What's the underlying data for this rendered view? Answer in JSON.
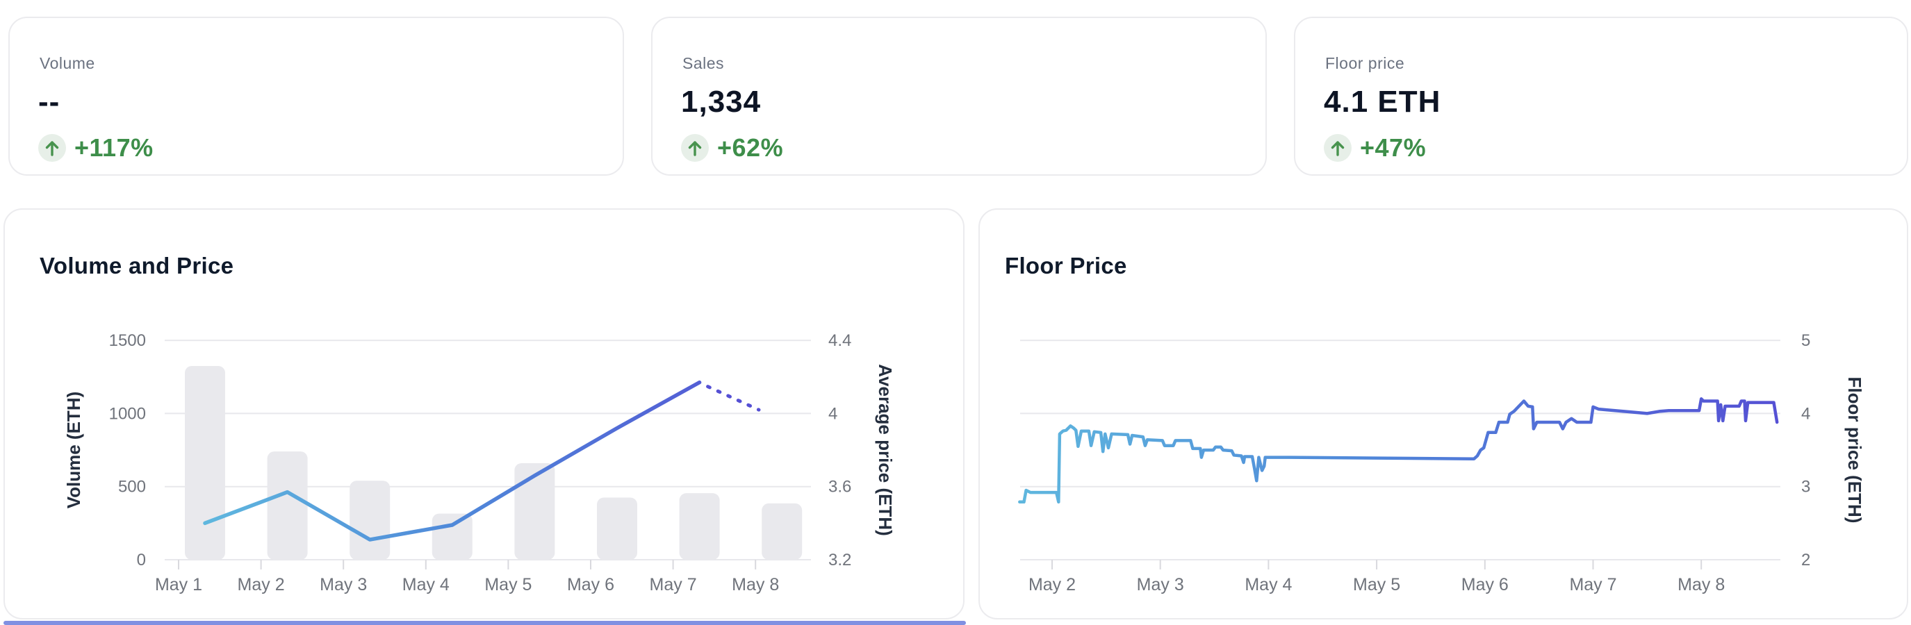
{
  "stat_cards": [
    {
      "label": "Volume",
      "value": "--",
      "change": "+117%",
      "trend": "up"
    },
    {
      "label": "Sales",
      "value": "1,334",
      "change": "+62%",
      "trend": "up"
    },
    {
      "label": "Floor price",
      "value": "4.1 ETH",
      "change": "+47%",
      "trend": "up"
    }
  ],
  "colors": {
    "green_text": "#3e8e4a",
    "green_arrow": "#48934e",
    "green_badge_bg": "#e7efe8",
    "bar_fill": "#e9e9ed",
    "grid": "#e8e8ec",
    "tick_stub": "#d9d9de",
    "tick_text": "#6f737b",
    "axis_title_text": "#242e3e",
    "heading_text": "#0f1a2b",
    "line_start": "#5fb7de",
    "line_mid": "#4f87d9",
    "line_end": "#5550d4",
    "card_border": "#ebebee",
    "bottom_strip": "#8090e2"
  },
  "chart_data": [
    {
      "type": "bar+line",
      "title": "Volume and Price",
      "categories": [
        "May 1",
        "May 2",
        "May 3",
        "May 4",
        "May 5",
        "May 6",
        "May 7",
        "May 8"
      ],
      "series": [
        {
          "name": "Volume",
          "type": "bar",
          "axis": "left",
          "values": [
            1325,
            740,
            540,
            315,
            660,
            425,
            455,
            385
          ]
        },
        {
          "name": "Average price",
          "type": "line",
          "axis": "right",
          "values": [
            3.4,
            3.57,
            3.31,
            3.39,
            3.66,
            3.92,
            4.17
          ],
          "projected_value": 4.02,
          "projected_style": "dotted"
        }
      ],
      "left_axis": {
        "label": "Volume (ETH)",
        "ticks": [
          0,
          500,
          1000,
          1500
        ],
        "range": [
          0,
          1500
        ]
      },
      "right_axis": {
        "label": "Average price (ETH)",
        "ticks": [
          3.2,
          3.6,
          4.0,
          4.4
        ],
        "range": [
          3.2,
          4.4
        ]
      },
      "grid": true,
      "legend": "none"
    },
    {
      "type": "line",
      "title": "Floor Price",
      "xlabel_ticks": [
        "May 2",
        "May 3",
        "May 4",
        "May 5",
        "May 6",
        "May 7",
        "May 8"
      ],
      "x_tick_days": [
        2,
        3,
        4,
        5,
        6,
        7,
        8
      ],
      "x_domain": [
        1.7,
        8.73
      ],
      "right_axis": {
        "label": "Floor price (ETH)",
        "ticks": [
          2,
          3,
          4,
          5
        ],
        "range": [
          2,
          5
        ]
      },
      "grid": true,
      "legend": "none",
      "series": [
        {
          "name": "Floor price",
          "type": "line",
          "axis": "right",
          "points": [
            [
              1.7,
              2.79
            ],
            [
              1.74,
              2.79
            ],
            [
              1.76,
              2.95
            ],
            [
              1.8,
              2.92
            ],
            [
              2.04,
              2.92
            ],
            [
              2.06,
              2.79
            ],
            [
              2.07,
              3.72
            ],
            [
              2.1,
              3.76
            ],
            [
              2.13,
              3.77
            ],
            [
              2.17,
              3.83
            ],
            [
              2.2,
              3.8
            ],
            [
              2.22,
              3.77
            ],
            [
              2.24,
              3.55
            ],
            [
              2.27,
              3.76
            ],
            [
              2.34,
              3.76
            ],
            [
              2.36,
              3.56
            ],
            [
              2.39,
              3.75
            ],
            [
              2.45,
              3.74
            ],
            [
              2.47,
              3.48
            ],
            [
              2.49,
              3.72
            ],
            [
              2.52,
              3.53
            ],
            [
              2.55,
              3.72
            ],
            [
              2.7,
              3.71
            ],
            [
              2.72,
              3.58
            ],
            [
              2.74,
              3.7
            ],
            [
              2.84,
              3.68
            ],
            [
              2.86,
              3.56
            ],
            [
              2.88,
              3.64
            ],
            [
              3.02,
              3.63
            ],
            [
              3.04,
              3.56
            ],
            [
              3.12,
              3.56
            ],
            [
              3.14,
              3.63
            ],
            [
              3.28,
              3.63
            ],
            [
              3.3,
              3.52
            ],
            [
              3.37,
              3.52
            ],
            [
              3.38,
              3.4
            ],
            [
              3.4,
              3.5
            ],
            [
              3.49,
              3.5
            ],
            [
              3.51,
              3.54
            ],
            [
              3.56,
              3.54
            ],
            [
              3.58,
              3.5
            ],
            [
              3.66,
              3.49
            ],
            [
              3.68,
              3.43
            ],
            [
              3.75,
              3.42
            ],
            [
              3.77,
              3.33
            ],
            [
              3.78,
              3.41
            ],
            [
              3.85,
              3.41
            ],
            [
              3.87,
              3.25
            ],
            [
              3.89,
              3.08
            ],
            [
              3.91,
              3.4
            ],
            [
              3.94,
              3.22
            ],
            [
              3.96,
              3.28
            ],
            [
              3.97,
              3.4
            ],
            [
              4.2,
              3.4
            ],
            [
              5.0,
              3.39
            ],
            [
              5.9,
              3.38
            ],
            [
              5.93,
              3.42
            ],
            [
              5.96,
              3.5
            ],
            [
              5.99,
              3.53
            ],
            [
              6.03,
              3.74
            ],
            [
              6.1,
              3.74
            ],
            [
              6.13,
              3.88
            ],
            [
              6.21,
              3.88
            ],
            [
              6.23,
              3.99
            ],
            [
              6.27,
              4.03
            ],
            [
              6.36,
              4.17
            ],
            [
              6.4,
              4.1
            ],
            [
              6.44,
              4.09
            ],
            [
              6.45,
              3.79
            ],
            [
              6.48,
              3.88
            ],
            [
              6.69,
              3.88
            ],
            [
              6.72,
              3.79
            ],
            [
              6.75,
              3.88
            ],
            [
              6.8,
              3.93
            ],
            [
              6.85,
              3.88
            ],
            [
              6.98,
              3.88
            ],
            [
              7.0,
              4.09
            ],
            [
              7.05,
              4.06
            ],
            [
              7.12,
              4.05
            ],
            [
              7.35,
              4.02
            ],
            [
              7.5,
              4.0
            ],
            [
              7.62,
              4.03
            ],
            [
              7.7,
              4.04
            ],
            [
              7.98,
              4.04
            ],
            [
              8.0,
              4.2
            ],
            [
              8.02,
              4.17
            ],
            [
              8.15,
              4.17
            ],
            [
              8.16,
              3.9
            ],
            [
              8.18,
              4.12
            ],
            [
              8.2,
              3.9
            ],
            [
              8.22,
              4.1
            ],
            [
              8.35,
              4.1
            ],
            [
              8.37,
              4.17
            ],
            [
              8.4,
              4.17
            ],
            [
              8.41,
              3.9
            ],
            [
              8.43,
              4.15
            ],
            [
              8.67,
              4.15
            ],
            [
              8.7,
              3.88
            ]
          ]
        }
      ]
    }
  ]
}
